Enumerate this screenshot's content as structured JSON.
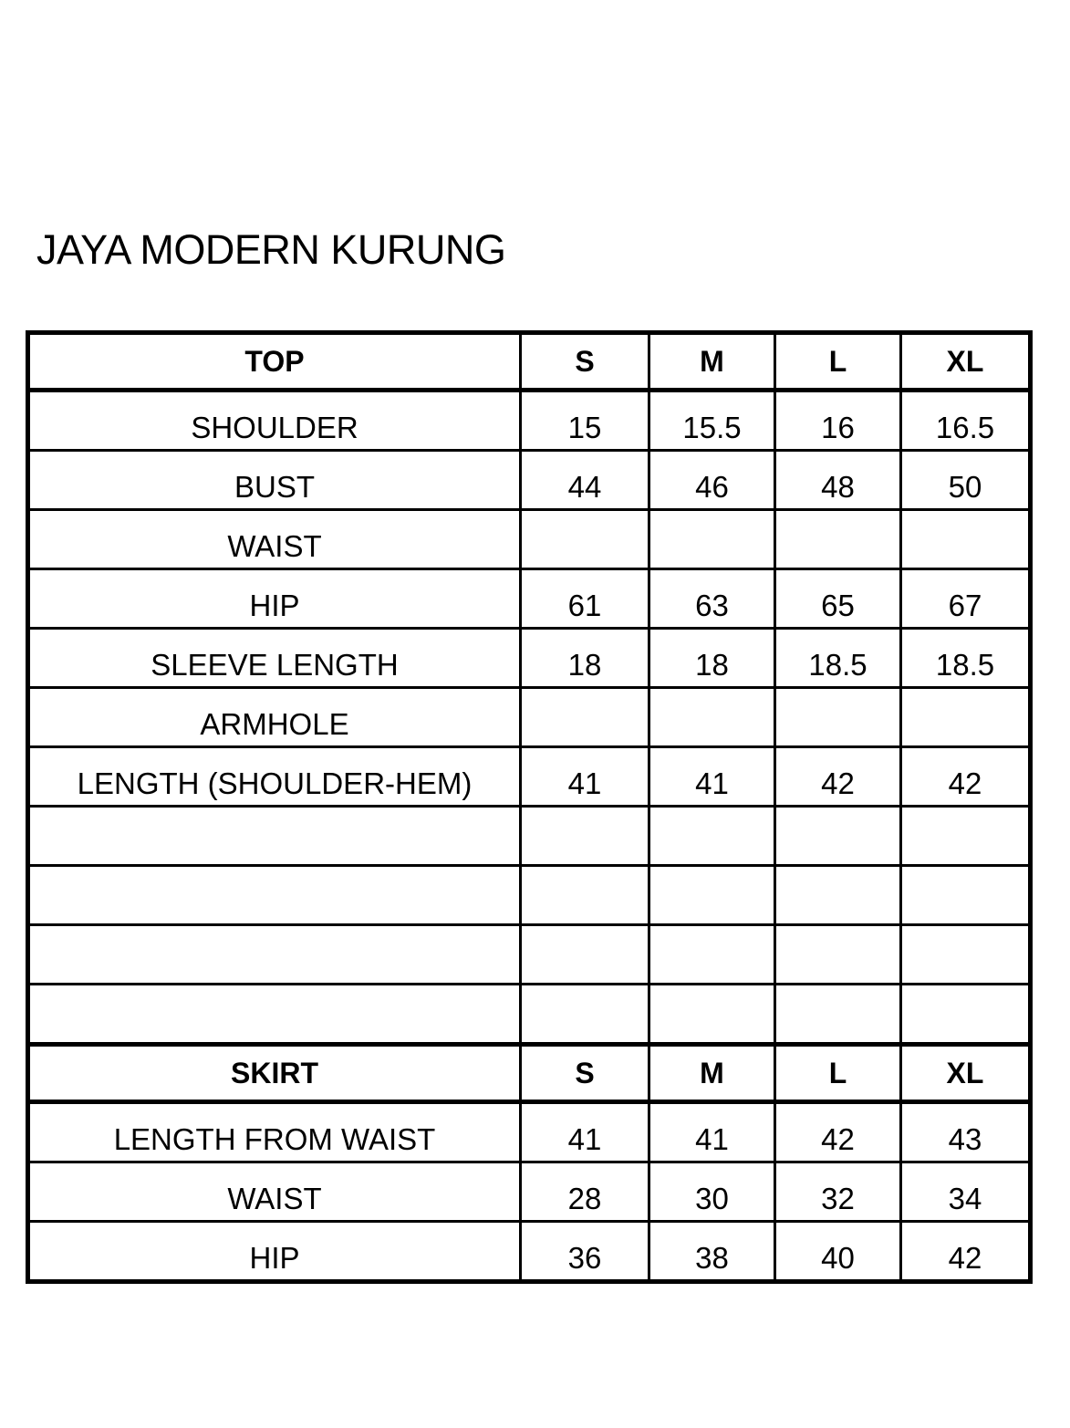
{
  "title": "JAYA MODERN KURUNG",
  "sections": [
    {
      "header": [
        "TOP",
        "S",
        "M",
        "L",
        "XL"
      ],
      "rows": [
        [
          "SHOULDER",
          "15",
          "15.5",
          "16",
          "16.5"
        ],
        [
          "BUST",
          "44",
          "46",
          "48",
          "50"
        ],
        [
          "WAIST",
          "",
          "",
          "",
          ""
        ],
        [
          "HIP",
          "61",
          "63",
          "65",
          "67"
        ],
        [
          "SLEEVE LENGTH",
          "18",
          "18",
          "18.5",
          "18.5"
        ],
        [
          "ARMHOLE",
          "",
          "",
          "",
          ""
        ],
        [
          "LENGTH (SHOULDER-HEM)",
          "41",
          "41",
          "42",
          "42"
        ],
        [
          "",
          "",
          "",
          "",
          ""
        ],
        [
          "",
          "",
          "",
          "",
          ""
        ],
        [
          "",
          "",
          "",
          "",
          ""
        ],
        [
          "",
          "",
          "",
          "",
          ""
        ]
      ]
    },
    {
      "header": [
        "SKIRT",
        "S",
        "M",
        "L",
        "XL"
      ],
      "rows": [
        [
          "LENGTH FROM WAIST",
          "41",
          "41",
          "42",
          "43"
        ],
        [
          "WAIST",
          "28",
          "30",
          "32",
          "34"
        ],
        [
          "HIP",
          "36",
          "38",
          "40",
          "42"
        ]
      ]
    }
  ]
}
